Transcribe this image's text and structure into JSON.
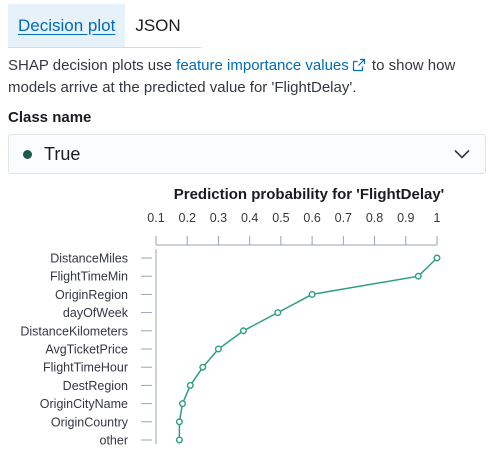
{
  "tabs": [
    {
      "label": "Decision plot",
      "active": true
    },
    {
      "label": "JSON",
      "active": false
    }
  ],
  "description": {
    "before": "SHAP decision plots use ",
    "link": "feature importance values",
    "after": " to show how models arrive at the predicted value for 'FlightDelay'."
  },
  "class_name": {
    "label": "Class name",
    "value": "True",
    "dot_color": "#1d5b47"
  },
  "colors": {
    "link": "#006bb8",
    "line": "#2e9e82"
  },
  "chart_data": {
    "type": "line",
    "title": "Prediction probability for 'FlightDelay'",
    "xlim": [
      0.1,
      1.0
    ],
    "xticks": [
      "0.1",
      "0.2",
      "0.3",
      "0.4",
      "0.5",
      "0.6",
      "0.7",
      "0.8",
      "0.9",
      "1"
    ],
    "features": [
      "DistanceMiles",
      "FlightTimeMin",
      "OriginRegion",
      "dayOfWeek",
      "DistanceKilometers",
      "AvgTicketPrice",
      "FlightTimeHour",
      "DestRegion",
      "OriginCityName",
      "OriginCountry",
      "other"
    ],
    "values": [
      1.0,
      0.94,
      0.6,
      0.49,
      0.38,
      0.3,
      0.25,
      0.21,
      0.185,
      0.175,
      0.175
    ]
  }
}
